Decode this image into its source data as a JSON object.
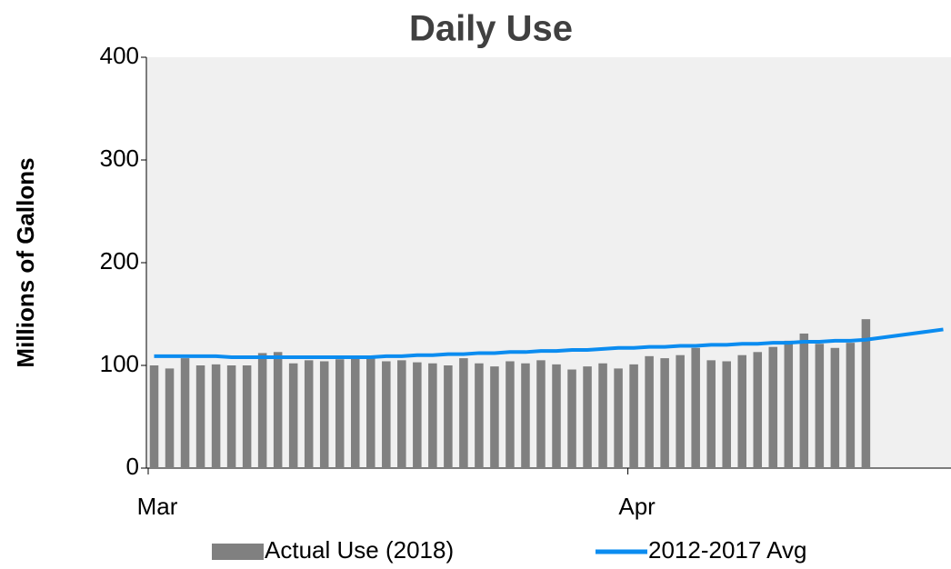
{
  "chart_data": {
    "type": "bar",
    "title": "Daily Use",
    "y_label": "Millions of Gallons",
    "categories": [
      "Mar",
      null,
      null,
      null,
      null,
      null,
      null,
      null,
      null,
      null,
      null,
      null,
      null,
      null,
      null,
      null,
      null,
      null,
      null,
      null,
      null,
      null,
      null,
      null,
      null,
      null,
      null,
      null,
      null,
      null,
      null,
      "Apr",
      null,
      null,
      null,
      null,
      null,
      null,
      null,
      null,
      null,
      null,
      null,
      null,
      null,
      null,
      null,
      null,
      null,
      null,
      null,
      null
    ],
    "series": [
      {
        "name": "Actual Use (2018)",
        "type": "bar",
        "color": "#808080",
        "values": [
          100,
          97,
          107,
          100,
          101,
          100,
          100,
          112,
          113,
          102,
          105,
          104,
          106,
          107,
          107,
          104,
          105,
          103,
          102,
          100,
          107,
          102,
          99,
          104,
          102,
          105,
          101,
          96,
          99,
          102,
          97,
          101,
          109,
          107,
          110,
          117,
          105,
          104,
          110,
          113,
          118,
          124,
          131,
          121,
          117,
          122,
          145,
          null,
          null,
          null,
          null,
          null
        ]
      },
      {
        "name": "2012-2017 Avg",
        "type": "line",
        "color": "#0b8cf0",
        "values": [
          109,
          109,
          109,
          109,
          109,
          108,
          108,
          108,
          108,
          108,
          108,
          108,
          108,
          108,
          108,
          109,
          109,
          110,
          110,
          111,
          111,
          112,
          112,
          113,
          113,
          114,
          114,
          115,
          115,
          116,
          117,
          117,
          118,
          118,
          119,
          119,
          120,
          120,
          121,
          121,
          122,
          122,
          123,
          123,
          124,
          124,
          125,
          127,
          129,
          131,
          133,
          135
        ]
      }
    ],
    "ylim": [
      0,
      400
    ],
    "yticks": [
      0,
      100,
      200,
      300,
      400
    ],
    "plot_background": "#f0f0f0"
  }
}
